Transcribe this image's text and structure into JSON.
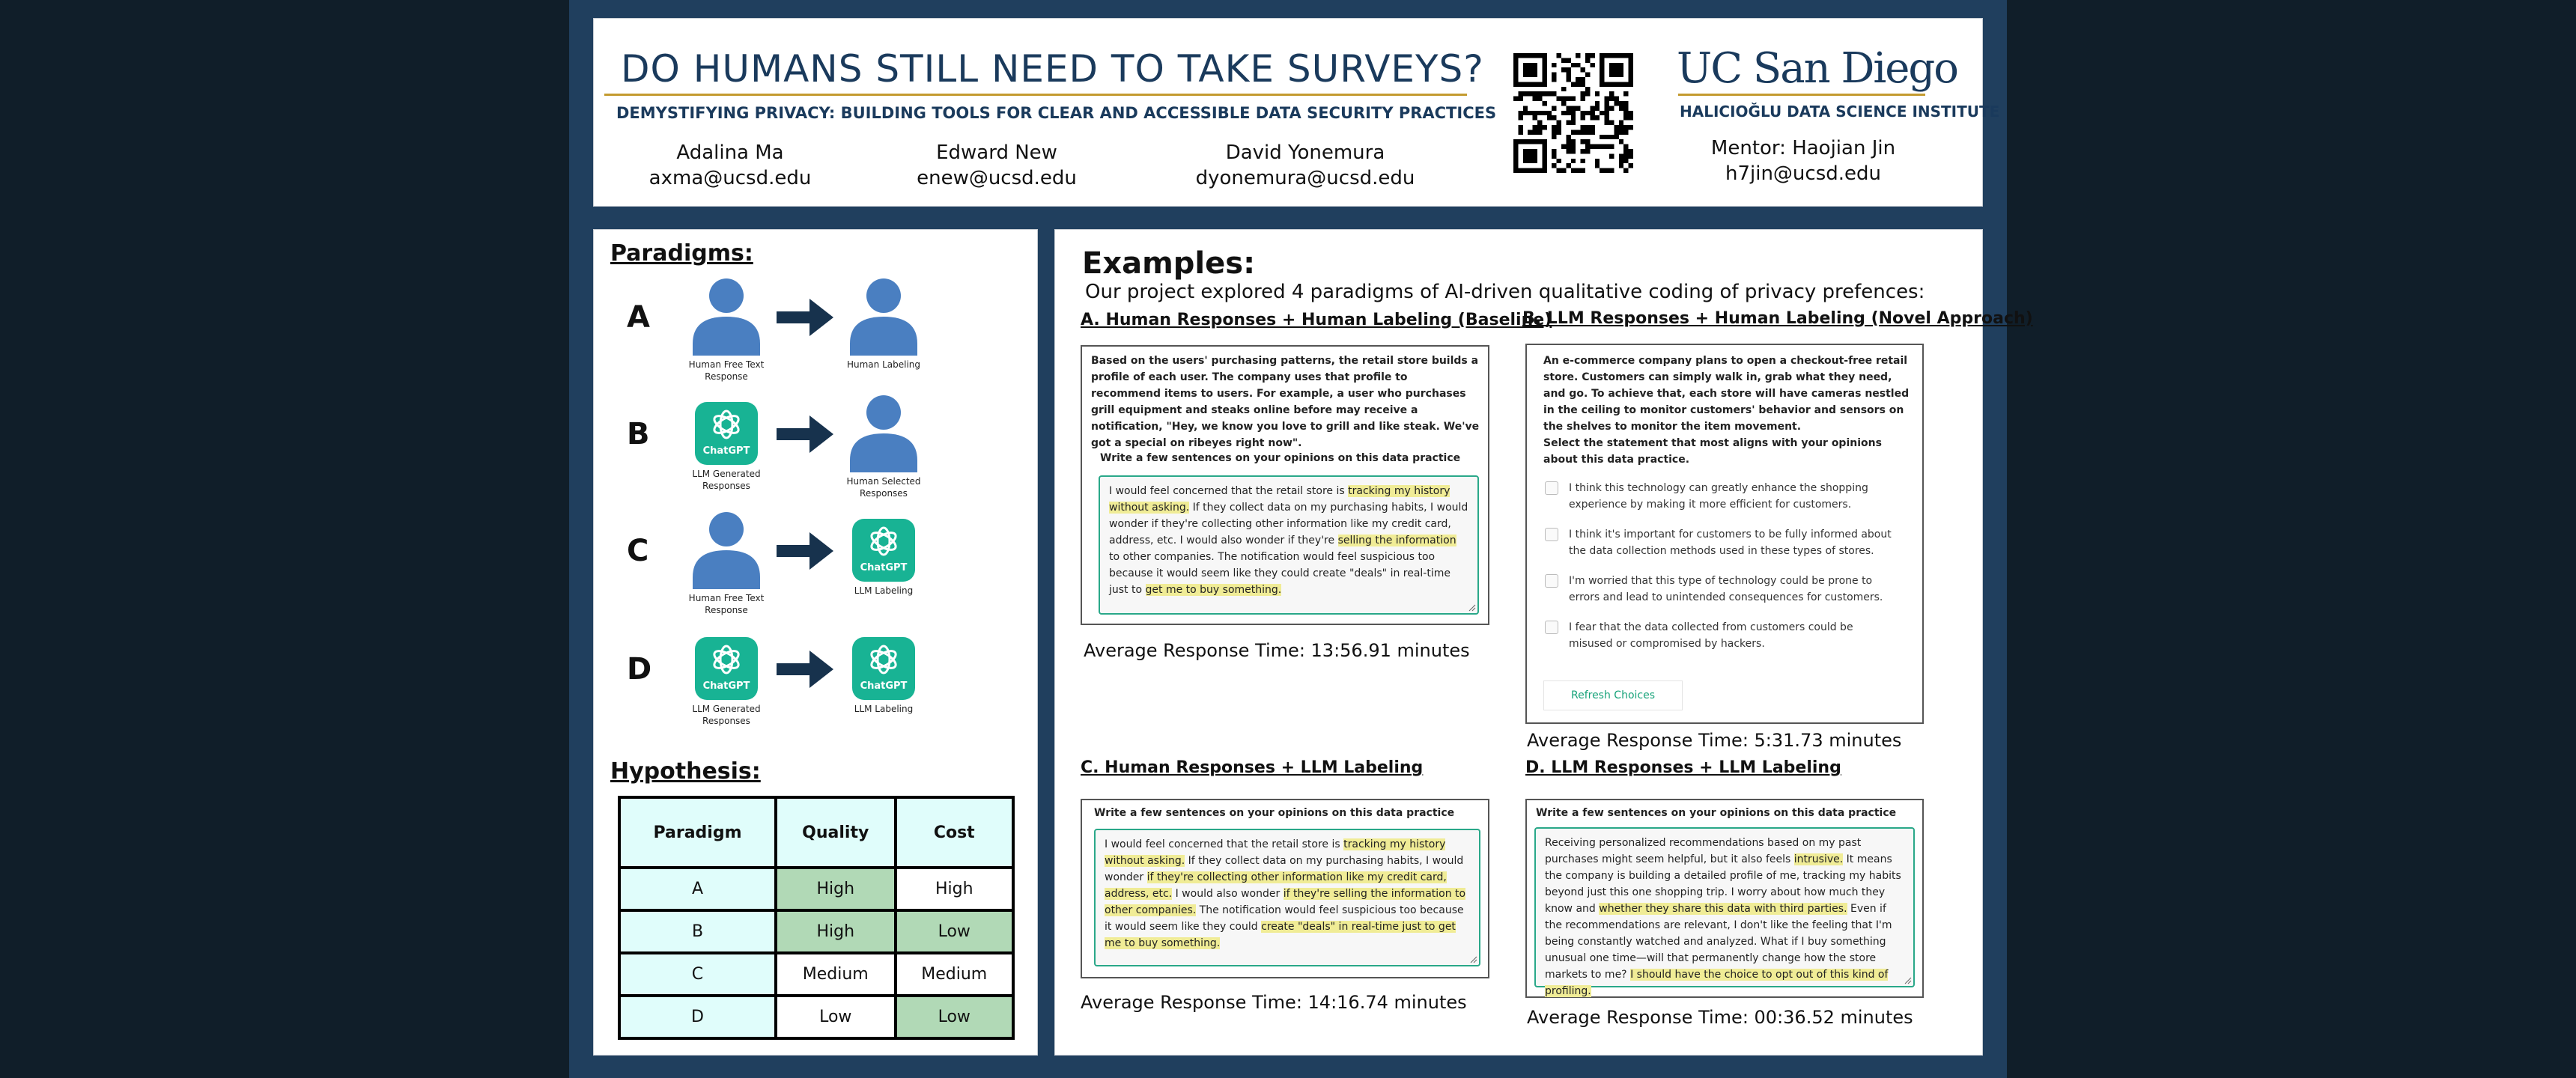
{
  "header": {
    "title": "DO HUMANS STILL NEED TO TAKE SURVEYS?",
    "subtitle": "DEMYSTIFYING PRIVACY: BUILDING TOOLS FOR CLEAR AND ACCESSIBLE DATA SECURITY PRACTICES",
    "authors": [
      {
        "name": "Adalina Ma",
        "email": "axma@ucsd.edu"
      },
      {
        "name": "Edward New",
        "email": "enew@ucsd.edu"
      },
      {
        "name": "David Yonemura",
        "email": "dyonemura@ucsd.edu"
      }
    ],
    "logo": {
      "main": "UC San Diego",
      "institute": "HALICIOĞLU DATA SCIENCE INSTITUTE"
    },
    "mentor": {
      "label": "Mentor: Haojian Jin",
      "email": "h7jin@ucsd.edu"
    }
  },
  "paradigms": {
    "title": "Paradigms:",
    "rows": [
      {
        "letter": "A",
        "left_caption": "Human Free Text Response",
        "right_caption": "Human Labeling",
        "left_icon": "person-icon",
        "right_icon": "person-icon"
      },
      {
        "letter": "B",
        "left_caption": "LLM Generated Responses",
        "right_caption": "Human Selected Responses",
        "left_icon": "chatgpt-icon",
        "right_icon": "person-icon"
      },
      {
        "letter": "C",
        "left_caption": "Human Free Text Response",
        "right_caption": "LLM Labeling",
        "left_icon": "person-icon",
        "right_icon": "chatgpt-icon"
      },
      {
        "letter": "D",
        "left_caption": "LLM Generated Responses",
        "right_caption": "LLM Labeling",
        "left_icon": "chatgpt-icon",
        "right_icon": "chatgpt-icon"
      }
    ],
    "gpt_label": "ChatGPT"
  },
  "hypothesis": {
    "title": "Hypothesis:",
    "columns": [
      "Paradigm",
      "Quality",
      "Cost"
    ],
    "rows": [
      [
        "A",
        "High",
        "High"
      ],
      [
        "B",
        "High",
        "Low"
      ],
      [
        "C",
        "Medium",
        "Medium"
      ],
      [
        "D",
        "Low",
        "Low"
      ]
    ]
  },
  "examples": {
    "title": "Examples:",
    "intro": "Our project explored 4 paradigms of AI-driven qualitative coding of privacy prefences:",
    "a": {
      "title": "A. Human Responses + Human Labeling (Baseline)",
      "scenario": "Based on the users' purchasing patterns, the retail store builds a profile of each user. The company uses that profile to recommend items to users. For example, a user who purchases grill equipment and steaks online before may receive a notification, \"Hey, we know you love to grill and like steak. We've got a special on ribeyes right now\".",
      "prompt": "Write a few sentences on your opinions on this data practice",
      "response": [
        {
          "t": "I would feel concerned that the retail store is ",
          "h": false
        },
        {
          "t": "tracking my history without asking.",
          "h": true
        },
        {
          "t": " If they collect data on my purchasing habits, I would wonder if they're collecting other information like my credit card, address, etc. I would also wonder if they're ",
          "h": false
        },
        {
          "t": "selling the information",
          "h": true
        },
        {
          "t": " to other companies. The notification would feel suspicious too because it would seem like they could create \"deals\" in real-time just to ",
          "h": false
        },
        {
          "t": "get me to buy something.",
          "h": true
        }
      ],
      "avg": "Average Response Time: 13:56.91 minutes"
    },
    "b": {
      "title": "B. LLM Responses + Human Labeling (Novel Approach)",
      "scenario": "An e-commerce company plans to open a checkout-free retail store. Customers can simply walk in, grab what they need, and go. To achieve that, each store will have cameras nestled in the ceiling to monitor customers' behavior and sensors on the shelves to monitor the item movement.",
      "prompt": "Select the statement that most aligns with your opinions about this data practice.",
      "choices": [
        "I think this technology can greatly enhance the shopping experience by making it more efficient for customers.",
        "I think it's important for customers to be fully informed about the data collection methods used in these types of stores.",
        "I'm worried that this type of technology could be prone to errors and lead to unintended consequences for customers.",
        "I fear that the data collected from customers could be misused or compromised by hackers."
      ],
      "refresh": "Refresh Choices",
      "avg": "Average Response Time: 5:31.73 minutes"
    },
    "c": {
      "title": "C. Human Responses + LLM Labeling",
      "prompt": "Write a few sentences on your opinions on this data practice",
      "response": [
        {
          "t": "I would feel concerned that the retail store is ",
          "h": false
        },
        {
          "t": "tracking my history without asking.",
          "h": true
        },
        {
          "t": " If they collect data on my purchasing habits, I would wonder ",
          "h": false
        },
        {
          "t": "if they're collecting other information like my credit card, address, etc.",
          "h": true
        },
        {
          "t": " I would also wonder ",
          "h": false
        },
        {
          "t": "if they're selling the information to other companies.",
          "h": true
        },
        {
          "t": " The notification would feel suspicious too because it would seem like they could ",
          "h": false
        },
        {
          "t": "create \"deals\" in real-time just to get me to buy something.",
          "h": true
        }
      ],
      "avg": "Average Response Time: 14:16.74 minutes"
    },
    "d": {
      "title": "D. LLM Responses + LLM Labeling",
      "prompt": "Write a few sentences on your opinions on this data practice",
      "response": [
        {
          "t": "Receiving personalized recommendations based on my past purchases might seem helpful, but it also feels ",
          "h": false
        },
        {
          "t": "intrusive.",
          "h": true
        },
        {
          "t": " It means the company is building a detailed profile of me, tracking my habits beyond just this one shopping trip. I worry about how much they know and ",
          "h": false
        },
        {
          "t": "whether they share this data with third parties.",
          "h": true
        },
        {
          "t": " Even if the recommendations are relevant, I don't like the feeling that I'm being constantly watched and analyzed. What if I buy something unusual one time—will that permanently change how the store markets to me? ",
          "h": false
        },
        {
          "t": "I should have the choice to opt out of this kind of profiling.",
          "h": true
        }
      ],
      "avg": "Average Response Time: 00:36.52 minutes"
    }
  },
  "colors": {
    "accent_gold": "#c49b2f",
    "navy": "#1a3a5c",
    "highlight": "#f0ec96",
    "gpt_green": "#18b394",
    "person_blue": "#4a7fc1",
    "cell_good": "#b1d9b6",
    "cell_header": "#e0fdfb"
  }
}
